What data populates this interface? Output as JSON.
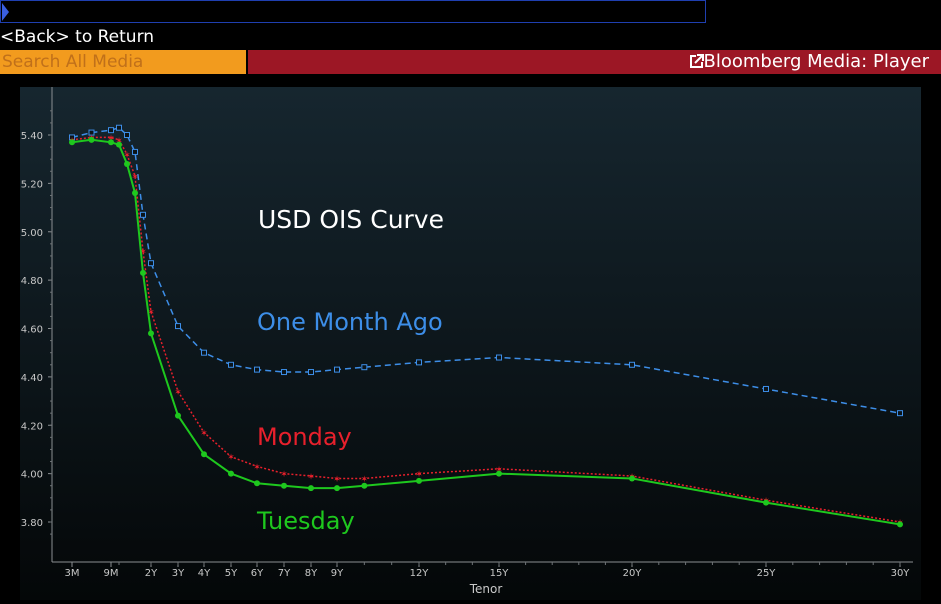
{
  "window": {
    "back_label": "<Back> to Return",
    "search_placeholder": "Search All Media",
    "player_title": "Bloomberg Media: Player"
  },
  "colors": {
    "one_month_ago": "#3d8ee8",
    "monday": "#e8202c",
    "tuesday": "#1ec81e",
    "search_bar": "#f29b1e",
    "title_bar": "#9c1725"
  },
  "chart_data": {
    "type": "line",
    "title": "USD OIS Curve",
    "xlabel": "Tenor",
    "ylabel": "",
    "ylim": [
      3.7,
      5.55
    ],
    "y_ticks": [
      "3.80",
      "4.00",
      "4.20",
      "4.40",
      "4.60",
      "4.80",
      "5.00",
      "5.20",
      "5.40"
    ],
    "x_ticks": [
      "3M",
      "9M",
      "2Y",
      "3Y",
      "4Y",
      "5Y",
      "6Y",
      "7Y",
      "8Y",
      "9Y",
      "12Y",
      "15Y",
      "20Y",
      "25Y",
      "30Y"
    ],
    "x_tick_years": [
      0.25,
      0.75,
      2,
      3,
      4,
      5,
      6,
      7,
      8,
      9,
      12,
      15,
      20,
      25,
      30
    ],
    "x_years": [
      0.25,
      0.5,
      0.75,
      1,
      1.25,
      1.5,
      1.75,
      2,
      3,
      4,
      5,
      6,
      7,
      8,
      9,
      10,
      12,
      15,
      20,
      25,
      30
    ],
    "series": [
      {
        "name": "One Month Ago",
        "style": "dashed",
        "marker": "square",
        "values": [
          5.39,
          5.41,
          5.42,
          5.43,
          5.4,
          5.33,
          5.07,
          4.87,
          4.61,
          4.5,
          4.45,
          4.43,
          4.42,
          4.42,
          4.43,
          4.44,
          4.46,
          4.48,
          4.45,
          4.35,
          4.25
        ]
      },
      {
        "name": "Monday",
        "style": "dotted",
        "marker": "star",
        "values": [
          5.38,
          5.39,
          5.39,
          5.38,
          5.32,
          5.23,
          4.92,
          4.67,
          4.34,
          4.17,
          4.07,
          4.03,
          4.0,
          3.99,
          3.98,
          3.98,
          4.0,
          4.02,
          3.99,
          3.89,
          3.8
        ]
      },
      {
        "name": "Tuesday",
        "style": "solid",
        "marker": "circle",
        "values": [
          5.37,
          5.38,
          5.37,
          5.36,
          5.28,
          5.16,
          4.83,
          4.58,
          4.24,
          4.08,
          4.0,
          3.96,
          3.95,
          3.94,
          3.94,
          3.95,
          3.97,
          4.0,
          3.98,
          3.88,
          3.79
        ]
      }
    ]
  }
}
